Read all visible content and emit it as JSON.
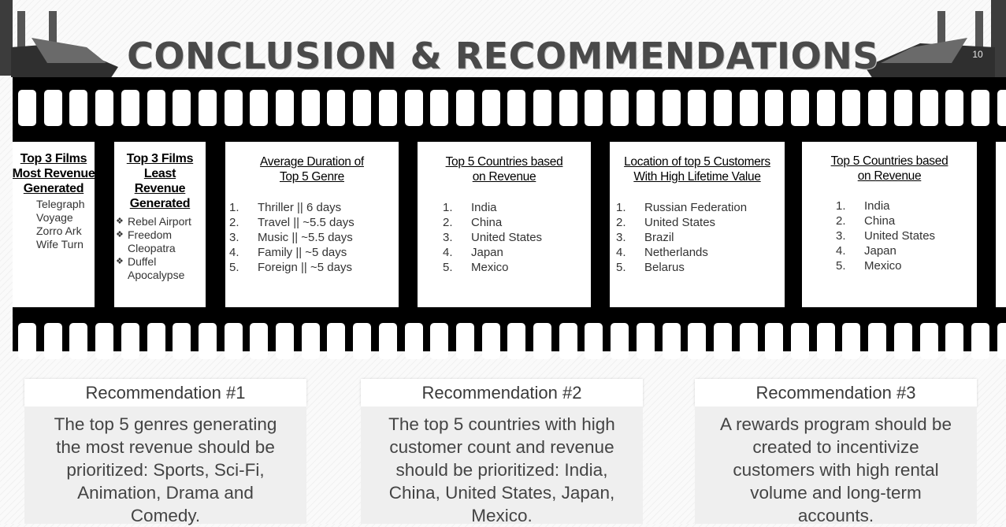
{
  "title": "CONCLUSION & RECOMMENDATIONS",
  "page_number": "10",
  "panels": [
    {
      "heading": "Top 3 Films Most Revenue Generated",
      "items": [
        "Telegraph Voyage",
        "Zorro Ark",
        "Wife Turn"
      ]
    },
    {
      "heading": "Top 3 Films Least Revenue Generated",
      "items": [
        "Rebel Airport",
        "Freedom Cleopatra",
        "Duffel Apocalypse"
      ]
    },
    {
      "heading": "Average Duration of Top 5 Genre",
      "items": [
        "Thriller || 6 days",
        "Travel || ~5.5 days",
        "Music || ~5.5 days",
        "Family || ~5 days",
        "Foreign || ~5 days"
      ]
    },
    {
      "heading": "Top 5 Countries based on Revenue",
      "items": [
        "India",
        "China",
        "United States",
        "Japan",
        "Mexico"
      ]
    },
    {
      "heading": "Location of top 5 Customers With High Lifetime Value",
      "items": [
        "Russian Federation",
        "United States",
        "Brazil",
        "Netherlands",
        "Belarus"
      ]
    },
    {
      "heading": "Top 5 Countries based on Revenue",
      "items": [
        "India",
        "China",
        "United States",
        "Japan",
        "Mexico"
      ]
    }
  ],
  "recommendations": [
    {
      "title": "Recommendation #1",
      "text": "The top 5 genres generating the most revenue should be prioritized: Sports, Sci-Fi, Animation, Drama and Comedy."
    },
    {
      "title": "Recommendation #2",
      "text": "The top 5 countries with high customer count and revenue should be prioritized: India, China, United States, Japan, Mexico."
    },
    {
      "title": "Recommendation #3",
      "text": "A rewards program should be created to incentivize customers with high rental volume and long-term accounts."
    }
  ]
}
